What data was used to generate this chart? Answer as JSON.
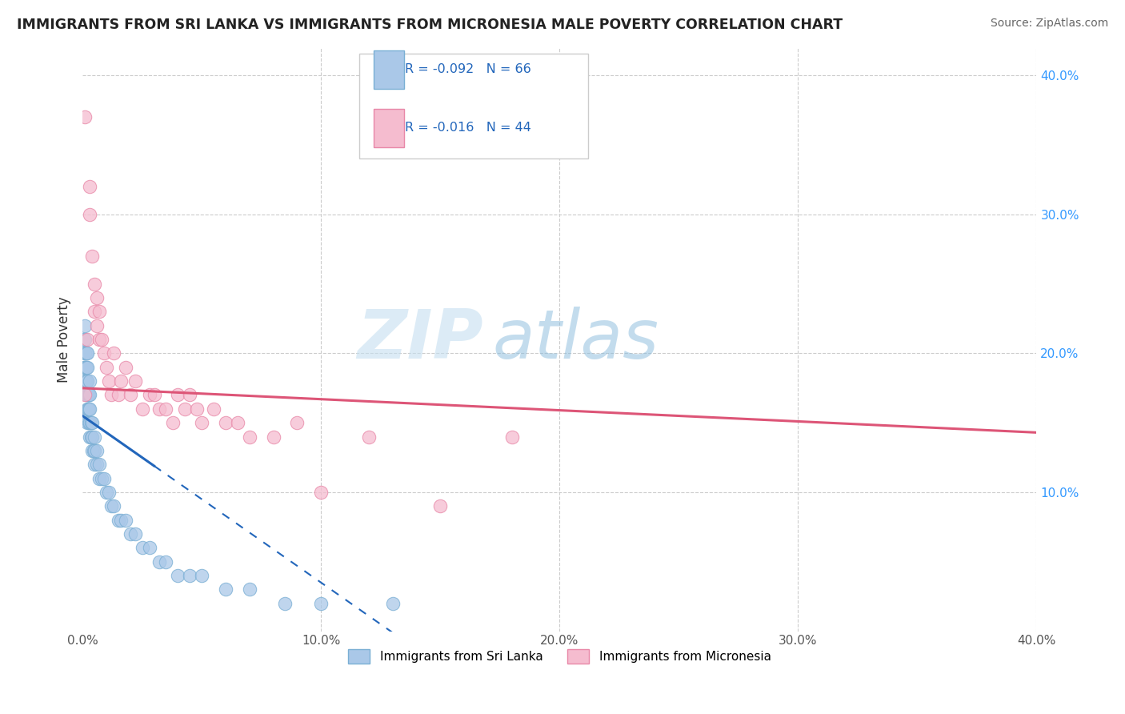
{
  "title": "IMMIGRANTS FROM SRI LANKA VS IMMIGRANTS FROM MICRONESIA MALE POVERTY CORRELATION CHART",
  "source": "Source: ZipAtlas.com",
  "ylabel": "Male Poverty",
  "series": [
    {
      "name": "Immigrants from Sri Lanka",
      "R": -0.092,
      "N": 66,
      "color": "#aac8e8",
      "edge_color": "#7aafd4",
      "trend_color": "#2266bb",
      "R_label": "R = -0.092",
      "N_label": "N = 66"
    },
    {
      "name": "Immigrants from Micronesia",
      "R": -0.016,
      "N": 44,
      "color": "#f5bccf",
      "edge_color": "#e888a8",
      "trend_color": "#dd5577",
      "R_label": "R = -0.016",
      "N_label": "N = 44"
    }
  ],
  "legend_text_color": "#2266bb",
  "background_color": "#ffffff",
  "grid_color": "#cccccc",
  "watermark_zip": "ZIP",
  "watermark_atlas": "atlas",
  "xlim": [
    0.0,
    0.4
  ],
  "ylim": [
    0.0,
    0.42
  ],
  "xticks": [
    0.0,
    0.1,
    0.2,
    0.3,
    0.4
  ],
  "yticks_right": [
    0.1,
    0.2,
    0.3,
    0.4
  ],
  "ytick_labels_right": [
    "10.0%",
    "20.0%",
    "30.0%",
    "40.0%"
  ],
  "xtick_labels": [
    "0.0%",
    "10.0%",
    "20.0%",
    "30.0%",
    "40.0%"
  ],
  "sri_lanka_x": [
    0.0005,
    0.0005,
    0.0008,
    0.0008,
    0.001,
    0.001,
    0.001,
    0.001,
    0.0012,
    0.0012,
    0.0015,
    0.0015,
    0.0015,
    0.0015,
    0.002,
    0.002,
    0.002,
    0.002,
    0.002,
    0.002,
    0.0022,
    0.0022,
    0.0025,
    0.0025,
    0.0025,
    0.003,
    0.003,
    0.003,
    0.003,
    0.003,
    0.0035,
    0.0035,
    0.004,
    0.004,
    0.004,
    0.0045,
    0.005,
    0.005,
    0.005,
    0.006,
    0.006,
    0.007,
    0.007,
    0.008,
    0.009,
    0.01,
    0.011,
    0.012,
    0.013,
    0.015,
    0.016,
    0.018,
    0.02,
    0.022,
    0.025,
    0.028,
    0.032,
    0.035,
    0.04,
    0.045,
    0.05,
    0.06,
    0.07,
    0.085,
    0.1,
    0.13
  ],
  "sri_lanka_y": [
    0.19,
    0.21,
    0.2,
    0.22,
    0.18,
    0.19,
    0.2,
    0.21,
    0.18,
    0.19,
    0.17,
    0.18,
    0.19,
    0.2,
    0.15,
    0.16,
    0.17,
    0.18,
    0.19,
    0.2,
    0.16,
    0.17,
    0.15,
    0.16,
    0.17,
    0.14,
    0.15,
    0.16,
    0.17,
    0.18,
    0.14,
    0.15,
    0.13,
    0.14,
    0.15,
    0.13,
    0.12,
    0.13,
    0.14,
    0.12,
    0.13,
    0.11,
    0.12,
    0.11,
    0.11,
    0.1,
    0.1,
    0.09,
    0.09,
    0.08,
    0.08,
    0.08,
    0.07,
    0.07,
    0.06,
    0.06,
    0.05,
    0.05,
    0.04,
    0.04,
    0.04,
    0.03,
    0.03,
    0.02,
    0.02,
    0.02
  ],
  "micronesia_x": [
    0.001,
    0.001,
    0.002,
    0.003,
    0.003,
    0.004,
    0.005,
    0.005,
    0.006,
    0.006,
    0.007,
    0.007,
    0.008,
    0.009,
    0.01,
    0.011,
    0.012,
    0.013,
    0.015,
    0.016,
    0.018,
    0.02,
    0.022,
    0.025,
    0.028,
    0.03,
    0.032,
    0.035,
    0.038,
    0.04,
    0.043,
    0.045,
    0.048,
    0.05,
    0.055,
    0.06,
    0.065,
    0.07,
    0.08,
    0.09,
    0.1,
    0.12,
    0.15,
    0.18
  ],
  "micronesia_y": [
    0.37,
    0.17,
    0.21,
    0.3,
    0.32,
    0.27,
    0.25,
    0.23,
    0.22,
    0.24,
    0.21,
    0.23,
    0.21,
    0.2,
    0.19,
    0.18,
    0.17,
    0.2,
    0.17,
    0.18,
    0.19,
    0.17,
    0.18,
    0.16,
    0.17,
    0.17,
    0.16,
    0.16,
    0.15,
    0.17,
    0.16,
    0.17,
    0.16,
    0.15,
    0.16,
    0.15,
    0.15,
    0.14,
    0.14,
    0.15,
    0.1,
    0.14,
    0.09,
    0.14
  ],
  "sl_trend_solid_end": 0.03,
  "sl_trend_intercept": 0.155,
  "sl_trend_slope": -1.2,
  "mc_trend_intercept": 0.175,
  "mc_trend_slope": -0.08
}
